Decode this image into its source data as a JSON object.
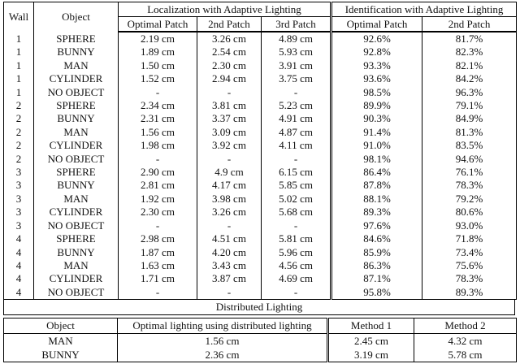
{
  "colors": {
    "background": "#ffffff",
    "text": "#111111",
    "border": "#000000"
  },
  "table1": {
    "header": {
      "wall": "Wall",
      "object": "Object",
      "localization_group": "Localization with Adaptive Lighting",
      "identification_group": "Identification with Adaptive Lighting",
      "localization_cols": [
        "Optimal Patch",
        "2nd Patch",
        "3rd Patch"
      ],
      "identification_cols": [
        "Optimal Patch",
        "2nd Patch"
      ]
    },
    "rows": [
      [
        "1",
        "SPHERE",
        "2.19 cm",
        "3.26 cm",
        "4.89 cm",
        "92.6%",
        "81.7%"
      ],
      [
        "1",
        "BUNNY",
        "1.89 cm",
        "2.54 cm",
        "5.93 cm",
        "92.8%",
        "82.3%"
      ],
      [
        "1",
        "MAN",
        "1.50 cm",
        "2.30 cm",
        "3.91 cm",
        "93.3%",
        "82.1%"
      ],
      [
        "1",
        "CYLINDER",
        "1.52 cm",
        "2.94 cm",
        "3.75 cm",
        "93.6%",
        "84.2%"
      ],
      [
        "1",
        "NO OBJECT",
        "-",
        "-",
        "-",
        "98.5%",
        "96.3%"
      ],
      [
        "2",
        "SPHERE",
        "2.34 cm",
        "3.81 cm",
        "5.23 cm",
        "89.9%",
        "79.1%"
      ],
      [
        "2",
        "BUNNY",
        "2.31 cm",
        "3.37 cm",
        "4.91 cm",
        "90.3%",
        "84.9%"
      ],
      [
        "2",
        "MAN",
        "1.56 cm",
        "3.09 cm",
        "4.87 cm",
        "91.4%",
        "81.3%"
      ],
      [
        "2",
        "CYLINDER",
        "1.98 cm",
        "3.92 cm",
        "4.11 cm",
        "91.0%",
        "83.5%"
      ],
      [
        "2",
        "NO OBJECT",
        "-",
        "-",
        "-",
        "98.1%",
        "94.6%"
      ],
      [
        "3",
        "SPHERE",
        "2.90 cm",
        "4.9 cm",
        "6.15 cm",
        "86.4%",
        "76.1%"
      ],
      [
        "3",
        "BUNNY",
        "2.81 cm",
        "4.17 cm",
        "5.85 cm",
        "87.8%",
        "78.3%"
      ],
      [
        "3",
        "MAN",
        "1.92 cm",
        "3.98 cm",
        "5.02 cm",
        "88.1%",
        "79.2%"
      ],
      [
        "3",
        "CYLINDER",
        "2.30 cm",
        "3.26 cm",
        "5.68 cm",
        "89.3%",
        "80.6%"
      ],
      [
        "3",
        "NO OBJECT",
        "-",
        "-",
        "-",
        "97.6%",
        "93.0%"
      ],
      [
        "4",
        "SPHERE",
        "2.98 cm",
        "4.51 cm",
        "5.81 cm",
        "84.6%",
        "71.8%"
      ],
      [
        "4",
        "BUNNY",
        "1.87 cm",
        "4.20 cm",
        "5.96 cm",
        "85.9%",
        "73.4%"
      ],
      [
        "4",
        "MAN",
        "1.63 cm",
        "3.43 cm",
        "4.56 cm",
        "86.3%",
        "75.6%"
      ],
      [
        "4",
        "CYLINDER",
        "1.71 cm",
        "3.87 cm",
        "4.69 cm",
        "87.1%",
        "78.3%"
      ],
      [
        "4",
        "NO OBJECT",
        "-",
        "-",
        "-",
        "95.8%",
        "89.3%"
      ]
    ]
  },
  "banner": {
    "label": "Distributed Lighting"
  },
  "table2": {
    "header": [
      "Object",
      "Optimal lighting using distributed lighting",
      "Method 1",
      "Method 2"
    ],
    "rows": [
      [
        "MAN",
        "1.56 cm",
        "2.45 cm",
        "4.32 cm"
      ],
      [
        "BUNNY",
        "2.36 cm",
        "3.19 cm",
        "5.78 cm"
      ]
    ]
  }
}
